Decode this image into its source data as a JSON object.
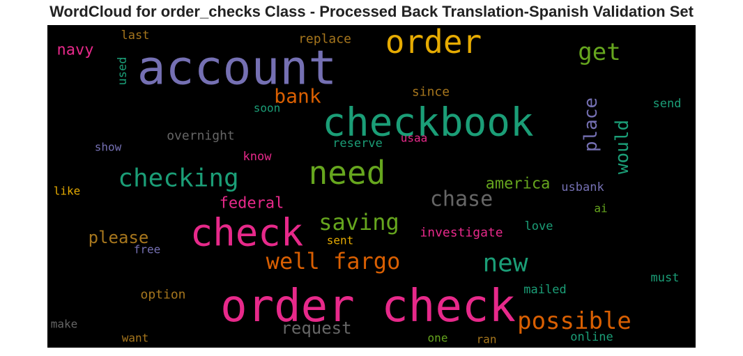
{
  "title": "WordCloud for order_checks Class - Processed Back Translation-Spanish Validation Set",
  "colors": {
    "background": "#000000",
    "palette": [
      "#1b9e77",
      "#d95f02",
      "#7570b3",
      "#e7298a",
      "#66a61e",
      "#e6ab02",
      "#a6761d",
      "#666666"
    ]
  },
  "chart_data": {
    "type": "wordcloud",
    "title": "WordCloud for order_checks Class - Processed Back Translation-Spanish Validation Set",
    "words": [
      {
        "text": "account",
        "color": "#7570b3"
      },
      {
        "text": "order check",
        "color": "#e7298a"
      },
      {
        "text": "checkbook",
        "color": "#1b9e77"
      },
      {
        "text": "check",
        "color": "#e7298a"
      },
      {
        "text": "order",
        "color": "#e6ab02"
      },
      {
        "text": "need",
        "color": "#66a61e"
      },
      {
        "text": "checking",
        "color": "#1b9e77"
      },
      {
        "text": "possible",
        "color": "#d95f02"
      },
      {
        "text": "well fargo",
        "color": "#d95f02"
      },
      {
        "text": "new",
        "color": "#1b9e77"
      },
      {
        "text": "get",
        "color": "#66a61e"
      },
      {
        "text": "saving",
        "color": "#66a61e"
      },
      {
        "text": "chase",
        "color": "#666666"
      },
      {
        "text": "bank",
        "color": "#d95f02"
      },
      {
        "text": "place",
        "color": "#7570b3"
      },
      {
        "text": "would",
        "color": "#1b9e77"
      },
      {
        "text": "request",
        "color": "#666666"
      },
      {
        "text": "america",
        "color": "#66a61e"
      },
      {
        "text": "please",
        "color": "#a6761d"
      },
      {
        "text": "navy",
        "color": "#e7298a"
      },
      {
        "text": "federal",
        "color": "#e7298a"
      },
      {
        "text": "investigate",
        "color": "#e7298a"
      },
      {
        "text": "overnight",
        "color": "#666666"
      },
      {
        "text": "replace",
        "color": "#a6761d"
      },
      {
        "text": "since",
        "color": "#a6761d"
      },
      {
        "text": "reserve",
        "color": "#1b9e77"
      },
      {
        "text": "option",
        "color": "#a6761d"
      },
      {
        "text": "usbank",
        "color": "#7570b3"
      },
      {
        "text": "mailed",
        "color": "#1b9e77"
      },
      {
        "text": "online",
        "color": "#1b9e77"
      },
      {
        "text": "send",
        "color": "#1b9e77"
      },
      {
        "text": "must",
        "color": "#1b9e77"
      },
      {
        "text": "love",
        "color": "#1b9e77"
      },
      {
        "text": "last",
        "color": "#a6761d"
      },
      {
        "text": "used",
        "color": "#1b9e77"
      },
      {
        "text": "soon",
        "color": "#1b9e77"
      },
      {
        "text": "show",
        "color": "#7570b3"
      },
      {
        "text": "know",
        "color": "#e7298a"
      },
      {
        "text": "usaa",
        "color": "#e7298a"
      },
      {
        "text": "like",
        "color": "#e6ab02"
      },
      {
        "text": "ai",
        "color": "#66a61e"
      },
      {
        "text": "sent",
        "color": "#e6ab02"
      },
      {
        "text": "free",
        "color": "#7570b3"
      },
      {
        "text": "make",
        "color": "#666666"
      },
      {
        "text": "want",
        "color": "#a6761d"
      },
      {
        "text": "one",
        "color": "#66a61e"
      },
      {
        "text": "ran",
        "color": "#a6761d"
      }
    ]
  }
}
